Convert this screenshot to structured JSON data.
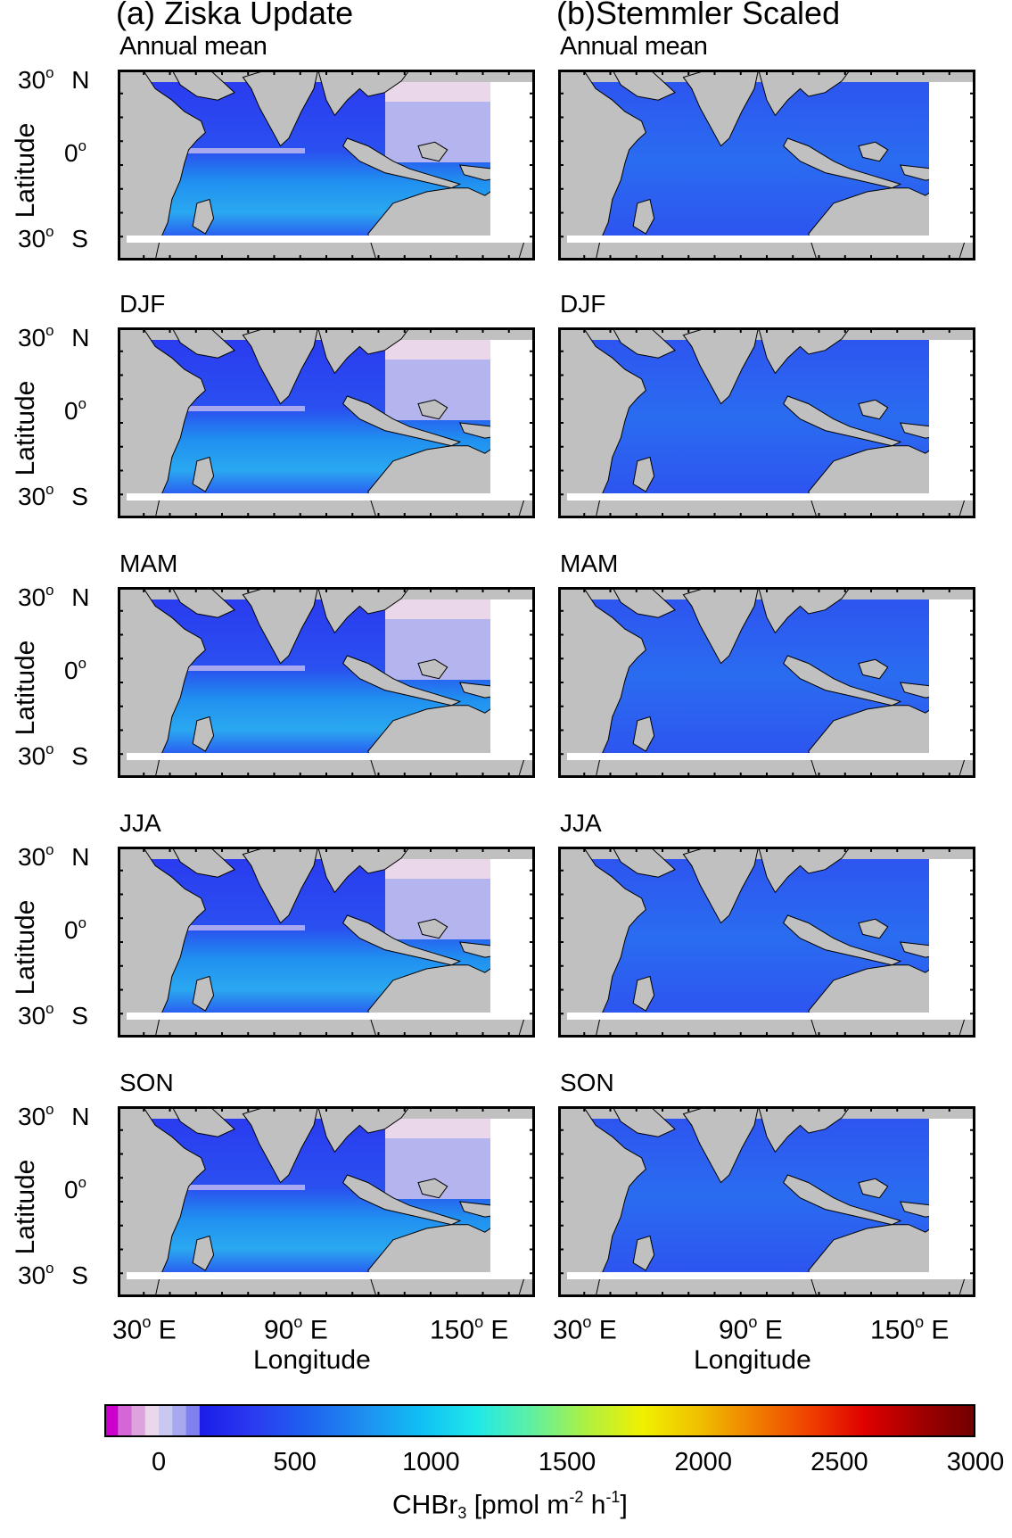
{
  "columns": [
    {
      "title": "(a)  Ziska Update"
    },
    {
      "title": "(b)Stemmler Scaled"
    }
  ],
  "rows": [
    {
      "season": "Annual mean"
    },
    {
      "season": "DJF"
    },
    {
      "season": "MAM"
    },
    {
      "season": "JJA"
    },
    {
      "season": "SON"
    }
  ],
  "axes": {
    "ylabel": "Latitude",
    "xlabel": "Longitude",
    "lat_ticks": [
      {
        "num": "30",
        "sup": "o",
        "dir": "N"
      },
      {
        "num": "0",
        "sup": "o",
        "dir": ""
      },
      {
        "num": "30",
        "sup": "o",
        "dir": "S"
      }
    ],
    "lon_ticks": [
      {
        "num": "30",
        "sup": "o",
        "dir": "E"
      },
      {
        "num": "90",
        "sup": "o",
        "dir": "E"
      },
      {
        "num": "150",
        "sup": "o",
        "dir": "E"
      }
    ]
  },
  "colorbar": {
    "ticks": [
      "0",
      "500",
      "1000",
      "1500",
      "2000",
      "2500",
      "3000"
    ],
    "label_main": "CHBr",
    "label_sub": "3",
    "label_units_a": " [pmol m",
    "label_units_sup1": "-2",
    "label_units_b": " h",
    "label_units_sup2": "-1",
    "label_units_c": "]",
    "range": [
      -200,
      3000
    ],
    "colors": [
      "#cc00cc",
      "#d566d5",
      "#dda3dd",
      "#ead8ea",
      "#c8c8f0",
      "#a8a8f0",
      "#8080f0",
      "#1c1ce8",
      "#2a3cf0",
      "#1e64f0",
      "#1e90f0",
      "#10c0f4",
      "#20e8e8",
      "#60f0a0",
      "#b0f040",
      "#f0f000",
      "#f0c000",
      "#f08000",
      "#f04000",
      "#e00000",
      "#a00000",
      "#700000"
    ]
  },
  "colors": {
    "land": "#c0c0c0",
    "ocean_a": "#3c66f0",
    "ocean_b": "#2d55f0",
    "frame": "#000000"
  }
}
